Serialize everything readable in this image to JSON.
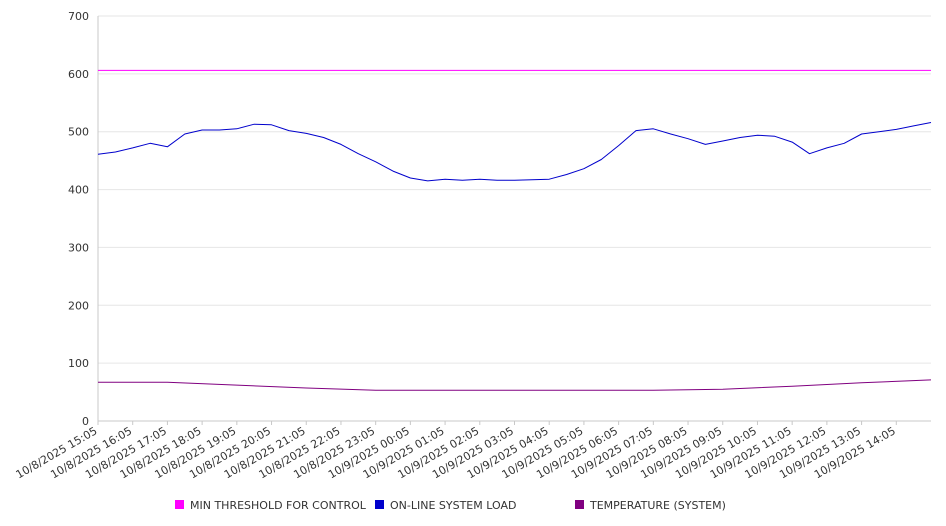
{
  "chart_data": {
    "type": "line",
    "title": "",
    "xlabel": "",
    "ylabel": "",
    "ylim": [
      0,
      700
    ],
    "y_ticks": [
      0,
      100,
      200,
      300,
      400,
      500,
      600,
      700
    ],
    "x_tick_labels": [
      "10/8/2025 15:05",
      "10/8/2025 16:05",
      "10/8/2025 17:05",
      "10/8/2025 18:05",
      "10/8/2025 19:05",
      "10/8/2025 20:05",
      "10/8/2025 21:05",
      "10/8/2025 22:05",
      "10/8/2025 23:05",
      "10/9/2025 00:05",
      "10/9/2025 01:05",
      "10/9/2025 02:05",
      "10/9/2025 03:05",
      "10/9/2025 04:05",
      "10/9/2025 05:05",
      "10/9/2025 06:05",
      "10/9/2025 07:05",
      "10/9/2025 08:05",
      "10/9/2025 09:05",
      "10/9/2025 10:05",
      "10/9/2025 11:05",
      "10/9/2025 12:05",
      "10/9/2025 13:05",
      "10/9/2025 14:05"
    ],
    "x_start": "10/8/2025 15:05",
    "x_end": "10/9/2025 15:05",
    "grid": true,
    "legend_position": "bottom",
    "series": [
      {
        "name": "MIN THRESHOLD FOR CONTROL",
        "color": "#ff00ff",
        "x": [
          "10/8/2025 15:05",
          "10/9/2025 15:05"
        ],
        "values": [
          606,
          606
        ]
      },
      {
        "name": "ON-LINE SYSTEM LOAD",
        "color": "#0000cc",
        "x": [
          "10/8/2025 15:05",
          "10/8/2025 15:35",
          "10/8/2025 16:05",
          "10/8/2025 16:35",
          "10/8/2025 17:05",
          "10/8/2025 17:35",
          "10/8/2025 18:05",
          "10/8/2025 18:35",
          "10/8/2025 19:05",
          "10/8/2025 19:35",
          "10/8/2025 20:05",
          "10/8/2025 20:35",
          "10/8/2025 21:05",
          "10/8/2025 21:35",
          "10/8/2025 22:05",
          "10/8/2025 22:35",
          "10/8/2025 23:05",
          "10/8/2025 23:35",
          "10/9/2025 00:05",
          "10/9/2025 00:35",
          "10/9/2025 01:05",
          "10/9/2025 01:35",
          "10/9/2025 02:05",
          "10/9/2025 02:35",
          "10/9/2025 03:05",
          "10/9/2025 03:35",
          "10/9/2025 04:05",
          "10/9/2025 04:35",
          "10/9/2025 05:05",
          "10/9/2025 05:35",
          "10/9/2025 06:05",
          "10/9/2025 06:35",
          "10/9/2025 07:05",
          "10/9/2025 07:35",
          "10/9/2025 08:05",
          "10/9/2025 08:35",
          "10/9/2025 09:05",
          "10/9/2025 09:35",
          "10/9/2025 10:05",
          "10/9/2025 10:35",
          "10/9/2025 11:05",
          "10/9/2025 11:35",
          "10/9/2025 12:05",
          "10/9/2025 12:35",
          "10/9/2025 13:05",
          "10/9/2025 13:35",
          "10/9/2025 14:05",
          "10/9/2025 14:35",
          "10/9/2025 15:05"
        ],
        "values": [
          461,
          465,
          472,
          480,
          474,
          496,
          503,
          503,
          505,
          513,
          512,
          502,
          497,
          490,
          478,
          462,
          448,
          432,
          420,
          415,
          418,
          416,
          418,
          416,
          416,
          417,
          418,
          426,
          436,
          452,
          476,
          502,
          505,
          496,
          488,
          478,
          484,
          490,
          494,
          492,
          482,
          462,
          472,
          480,
          496,
          500,
          504,
          510,
          516
        ]
      },
      {
        "name": "TEMPERATURE (SYSTEM)",
        "color": "#800080",
        "x": [
          "10/8/2025 15:05",
          "10/8/2025 17:05",
          "10/8/2025 19:05",
          "10/8/2025 21:05",
          "10/8/2025 23:05",
          "10/9/2025 01:05",
          "10/9/2025 03:05",
          "10/9/2025 05:05",
          "10/9/2025 07:05",
          "10/9/2025 09:05",
          "10/9/2025 11:05",
          "10/9/2025 13:05",
          "10/9/2025 15:05"
        ],
        "values": [
          67,
          67,
          62,
          57,
          53,
          53,
          53,
          53,
          53,
          55,
          60,
          66,
          71
        ]
      }
    ]
  }
}
